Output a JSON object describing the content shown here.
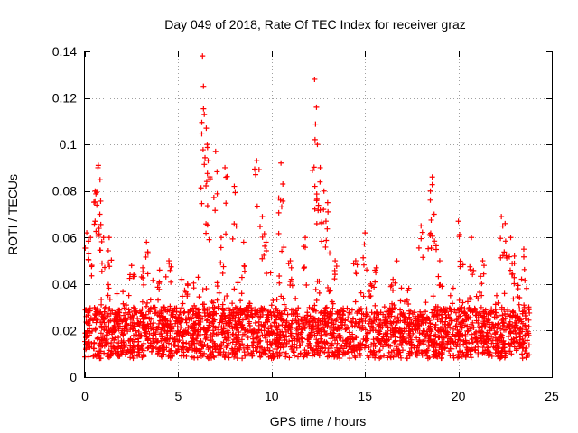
{
  "chart_data": {
    "type": "scatter",
    "title": "Day 049 of 2018, Rate Of TEC Index for receiver graz",
    "xlabel": "GPS time / hours",
    "ylabel": "ROTI / TECUs",
    "xlim": [
      0,
      25
    ],
    "ylim": [
      0,
      0.14
    ],
    "x_ticks": [
      0,
      5,
      10,
      15,
      20,
      25
    ],
    "y_ticks": [
      0,
      0.02,
      0.04,
      0.06,
      0.08,
      0.1,
      0.12,
      0.14
    ],
    "x_tick_labels": [
      "0",
      "5",
      "10",
      "15",
      "20",
      "25"
    ],
    "y_tick_labels": [
      "0",
      "0.02",
      "0.04",
      "0.06",
      "0.08",
      "0.1",
      "0.12",
      "0.14"
    ],
    "grid": true,
    "marker": "+",
    "color": "#ff0000",
    "data_x_range": [
      0,
      23.8
    ],
    "baseline_band": [
      0.008,
      0.03
    ],
    "series": [
      {
        "name": "ROTI peaks",
        "x": [
          0.1,
          0.3,
          0.55,
          0.7,
          0.72,
          0.8,
          1.0,
          1.3,
          2.5,
          3.1,
          3.3,
          4.0,
          4.5,
          5.5,
          6.3,
          6.35,
          6.5,
          6.55,
          6.6,
          7.0,
          7.3,
          7.5,
          8.0,
          8.5,
          9.2,
          9.5,
          9.7,
          10.5,
          10.6,
          11.0,
          11.8,
          12.3,
          12.4,
          12.45,
          12.6,
          12.8,
          13.0,
          13.4,
          14.5,
          15.0,
          15.3,
          15.6,
          16.5,
          18.0,
          18.5,
          18.6,
          18.7,
          19.0,
          20.0,
          20.7,
          21.3,
          22.3,
          22.5,
          22.8,
          23.0,
          23.5
        ],
        "y": [
          0.062,
          0.06,
          0.08,
          0.09,
          0.091,
          0.07,
          0.06,
          0.06,
          0.048,
          0.047,
          0.058,
          0.046,
          0.05,
          0.04,
          0.138,
          0.125,
          0.107,
          0.1,
          0.093,
          0.097,
          0.06,
          0.09,
          0.082,
          0.058,
          0.093,
          0.069,
          0.058,
          0.092,
          0.083,
          0.05,
          0.06,
          0.128,
          0.116,
          0.1,
          0.09,
          0.08,
          0.075,
          0.05,
          0.05,
          0.062,
          0.04,
          0.047,
          0.042,
          0.065,
          0.08,
          0.086,
          0.07,
          0.05,
          0.067,
          0.06,
          0.05,
          0.069,
          0.066,
          0.06,
          0.052,
          0.055
        ]
      }
    ]
  }
}
